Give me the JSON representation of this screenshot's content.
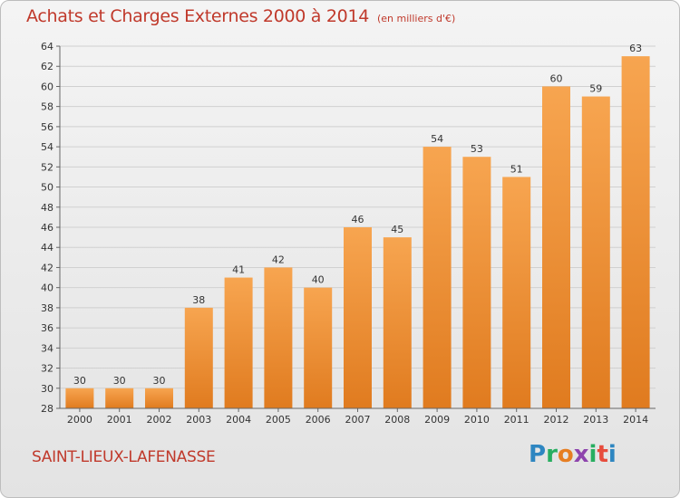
{
  "header": {
    "title": "Achats et Charges Externes 2000 à 2014",
    "subtitle": "(en milliers d'€)"
  },
  "footer": {
    "commune": "SAINT-LIEUX-LAFENASSE",
    "logo": [
      "P",
      "r",
      "o",
      "x",
      "i",
      "t",
      "i"
    ],
    "logo_colors": [
      "#2e86c1",
      "#27ae60",
      "#e67e22",
      "#8e44ad",
      "#27ae60",
      "#e74c3c",
      "#2e86c1"
    ]
  },
  "colors": {
    "bar_top": "#f7a550",
    "bar_bottom": "#e07b1f",
    "text_accent": "#c0392b"
  },
  "chart_data": {
    "type": "bar",
    "title": "Achats et Charges Externes 2000 à 2014",
    "subtitle": "(en milliers d'€)",
    "categories": [
      "2000",
      "2001",
      "2002",
      "2003",
      "2004",
      "2005",
      "2006",
      "2007",
      "2008",
      "2009",
      "2010",
      "2011",
      "2012",
      "2013",
      "2014"
    ],
    "values": [
      30,
      30,
      30,
      38,
      41,
      42,
      40,
      46,
      45,
      54,
      53,
      51,
      60,
      59,
      63
    ],
    "ylim": [
      28,
      64
    ],
    "yticks": [
      28,
      30,
      32,
      34,
      36,
      38,
      40,
      42,
      44,
      46,
      48,
      50,
      52,
      54,
      56,
      58,
      60,
      62,
      64
    ],
    "grid": true
  }
}
